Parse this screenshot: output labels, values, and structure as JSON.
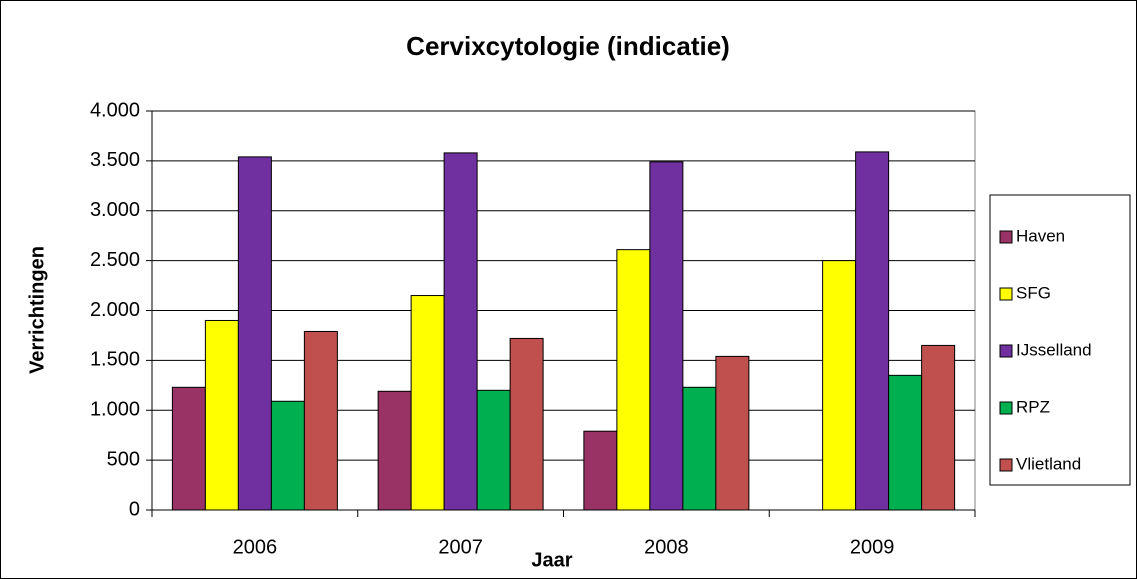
{
  "chart_data": {
    "type": "bar",
    "title": "Cervixcytologie (indicatie)",
    "x_label": "Jaar",
    "y_label": "Verrichtingen",
    "categories": [
      "2006",
      "2007",
      "2008",
      "2009"
    ],
    "series": [
      {
        "name": "Haven",
        "color": "#993366",
        "values": [
          1230,
          1190,
          790,
          0
        ]
      },
      {
        "name": "SFG",
        "color": "#ffff00",
        "values": [
          1900,
          2150,
          2610,
          2500
        ]
      },
      {
        "name": "IJsselland",
        "color": "#7030a0",
        "values": [
          3540,
          3580,
          3490,
          3590
        ]
      },
      {
        "name": "RPZ",
        "color": "#00b050",
        "values": [
          1090,
          1200,
          1230,
          1350
        ]
      },
      {
        "name": "Vlietland",
        "color": "#c0504d",
        "values": [
          1790,
          1720,
          1540,
          1650
        ]
      }
    ],
    "ylim": [
      0,
      4000
    ],
    "yticks": [
      0,
      500,
      {
        "value": 1000,
        "label": "1.000"
      },
      {
        "value": 1500,
        "label": "1.500"
      },
      {
        "value": 2000,
        "label": "2.000"
      },
      {
        "value": 2500,
        "label": "2.500"
      },
      {
        "value": 3000,
        "label": "3.000"
      },
      {
        "value": 3500,
        "label": "3.500"
      },
      {
        "value": 4000,
        "label": "4.000"
      }
    ],
    "grid": true,
    "legend": "right"
  }
}
